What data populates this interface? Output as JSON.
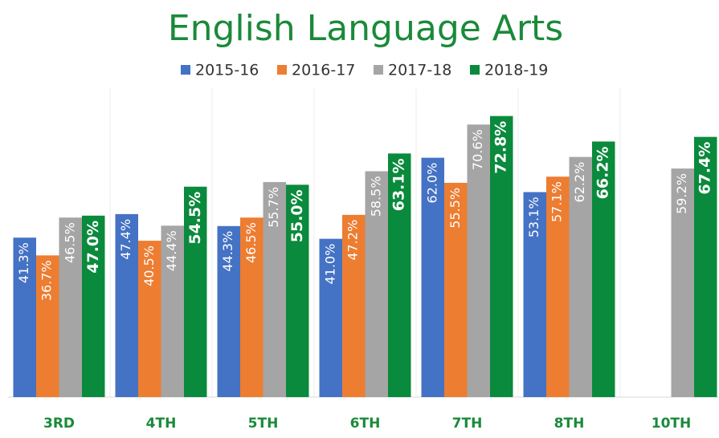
{
  "chart_data": {
    "type": "bar",
    "title": "English Language Arts",
    "categories": [
      "3RD",
      "4TH",
      "5TH",
      "6TH",
      "7TH",
      "8TH",
      "10TH"
    ],
    "series": [
      {
        "name": "2015-16",
        "color": "#4472c4",
        "values": [
          41.3,
          47.4,
          44.3,
          41.0,
          62.0,
          53.1,
          null
        ],
        "value_labels": [
          "41.3%",
          "47.4%",
          "44.3%",
          "41.0%",
          "62.0%",
          "53.1%",
          null
        ]
      },
      {
        "name": "2016-17",
        "color": "#ed7d31",
        "values": [
          36.7,
          40.5,
          46.5,
          47.2,
          55.5,
          57.1,
          null
        ],
        "value_labels": [
          "36.7%",
          "40.5%",
          "46.5%",
          "47.2%",
          "55.5%",
          "57.1%",
          null
        ]
      },
      {
        "name": "2017-18",
        "color": "#a5a5a5",
        "values": [
          46.5,
          44.4,
          55.7,
          58.5,
          70.6,
          62.2,
          59.2
        ],
        "value_labels": [
          "46.5%",
          "44.4%",
          "55.7%",
          "58.5%",
          "70.6%",
          "62.2%",
          "59.2%"
        ]
      },
      {
        "name": "2018-19",
        "color": "#0a8a3c",
        "values": [
          47.0,
          54.5,
          55.0,
          63.1,
          72.8,
          66.2,
          67.4
        ],
        "value_labels": [
          "47.0%",
          "54.5%",
          "55.0%",
          "63.1%",
          "72.8%",
          "66.2%",
          "67.4%"
        ]
      }
    ],
    "ylim": [
      0,
      80
    ]
  }
}
